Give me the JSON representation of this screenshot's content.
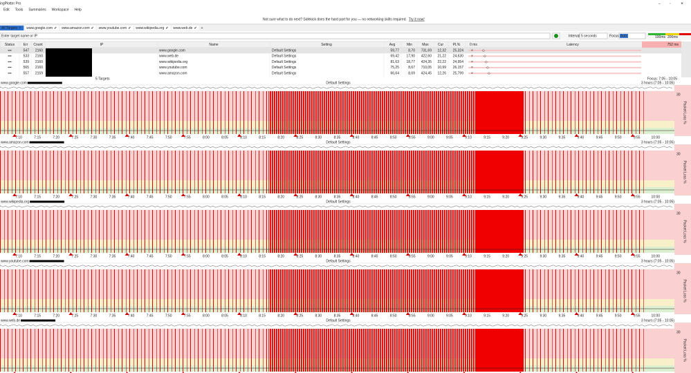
{
  "window": {
    "title": "ingPlotter Pro",
    "menu": [
      "Edit",
      "Tools",
      "Summaries",
      "Workspace",
      "Help"
    ]
  },
  "banner": {
    "text": "Not sure what to do next? Sidekick does the hard part for you — no networking skills required.",
    "link": "Try it now!"
  },
  "tabs": [
    "All Targets",
    "www.google.com",
    "www.amazon.com",
    "www.youtube.com",
    "www.wikipedia.org",
    "www.web.de"
  ],
  "toolbar": {
    "placeholder": "Enter target name or IP",
    "interval_label": "Interval",
    "interval": "5 seconds",
    "focus_label": "Focus",
    "focus": "Auto",
    "scale": [
      "100ms",
      "200ms"
    ],
    "max": "752 ms"
  },
  "table": {
    "columns": [
      "Status",
      "Err",
      "Count",
      "IP",
      "Name",
      "Setting",
      "Avg",
      "Min",
      "Max",
      "Cur",
      "PL%",
      "0 ms",
      "Latency"
    ],
    "rows": [
      [
        "547",
        "2160",
        "www.google.com",
        "Default Settings",
        "59,77",
        "8,70",
        "731,69",
        "12,32",
        "25,324"
      ],
      [
        "533",
        "2160",
        "www.web.de",
        "Default Settings",
        "69,42",
        "17,90",
        "422,60",
        "21,22",
        "24,630"
      ],
      [
        "539",
        "2160",
        "www.wikipedia.org",
        "Default Settings",
        "81,63",
        "18,77",
        "424,35",
        "22,22",
        "24,954"
      ],
      [
        "565",
        "2160",
        "www.youtube.com",
        "Default Settings",
        "75,25",
        "8,67",
        "710,05",
        "10,99",
        "26,157"
      ],
      [
        "557",
        "2159",
        "www.amazon.com",
        "Default Settings",
        "66,64",
        "8,69",
        "424,45",
        "12,26",
        "25,799"
      ]
    ],
    "footer": "5 Targets",
    "focus": "Focus: 7:05 - 10:05"
  },
  "graphs": [
    {
      "name": "www.google.com",
      "setting": "Default Settings",
      "range": "3 hours (7:05 - 10:05)"
    },
    {
      "name": "www.amazon.com",
      "setting": "Default Settings",
      "range": "3 hours (7:05 - 10:05)"
    },
    {
      "name": "www.wikipedia.org",
      "setting": "Default Settings",
      "range": "3 hours (7:05 - 10:05)"
    },
    {
      "name": "www.youtube.com",
      "setting": "Default Settings",
      "range": "3 hours (7:05 - 10:05)"
    },
    {
      "name": "www.web.de",
      "setting": "Default Settings",
      "range": "3 hours (7:05 - 10:05)"
    }
  ],
  "graph_axis": {
    "y_max": "30",
    "y_label": "Packet Loss %",
    "time_ticks": [
      "7:10",
      "7:15",
      "7:20",
      "7:25",
      "7:30",
      "7:35",
      "7:40",
      "7:45",
      "7:50",
      "7:55",
      "8:00",
      "8:05",
      "8:10",
      "8:15",
      "8:20",
      "8:25",
      "8:30",
      "8:35",
      "8:40",
      "8:45",
      "8:50",
      "8:55",
      "9:00",
      "9:05",
      "9:10",
      "9:15",
      "9:20",
      "9:25",
      "9:30",
      "9:35",
      "9:40",
      "9:45",
      "9:50",
      "9:55",
      "10:00"
    ]
  }
}
